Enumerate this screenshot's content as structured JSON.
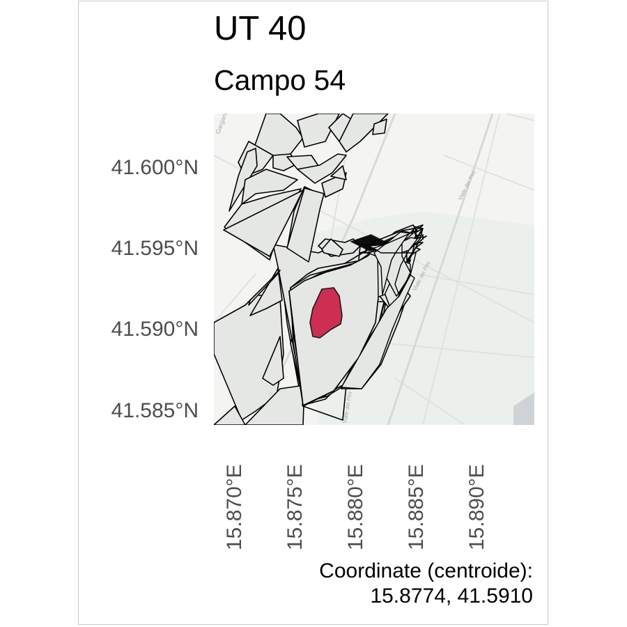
{
  "title": "UT 40",
  "subtitle": "Campo 54",
  "axes": {
    "y_ticks": [
      "41.600°N",
      "41.595°N",
      "41.590°N",
      "41.585°N"
    ],
    "x_ticks": [
      "15.870°E",
      "15.875°E",
      "15.880°E",
      "15.885°E",
      "15.890°E"
    ]
  },
  "caption": {
    "line1": "Coordinate (centroide):",
    "line2": "15.8774, 41.5910"
  },
  "basemap_labels": {
    "street_top_left": "Gargano",
    "street_diagonal_1": "Viale dei Pini",
    "street_diagonal_2": "Viale dei Pini",
    "street_bottom": "Viale dei Pini"
  },
  "colors": {
    "highlight_field": "#cc2f52",
    "parcel_fill": "#e4e7e4",
    "basemap": "#f4f5f3",
    "greenery": "#eaefeb"
  }
}
